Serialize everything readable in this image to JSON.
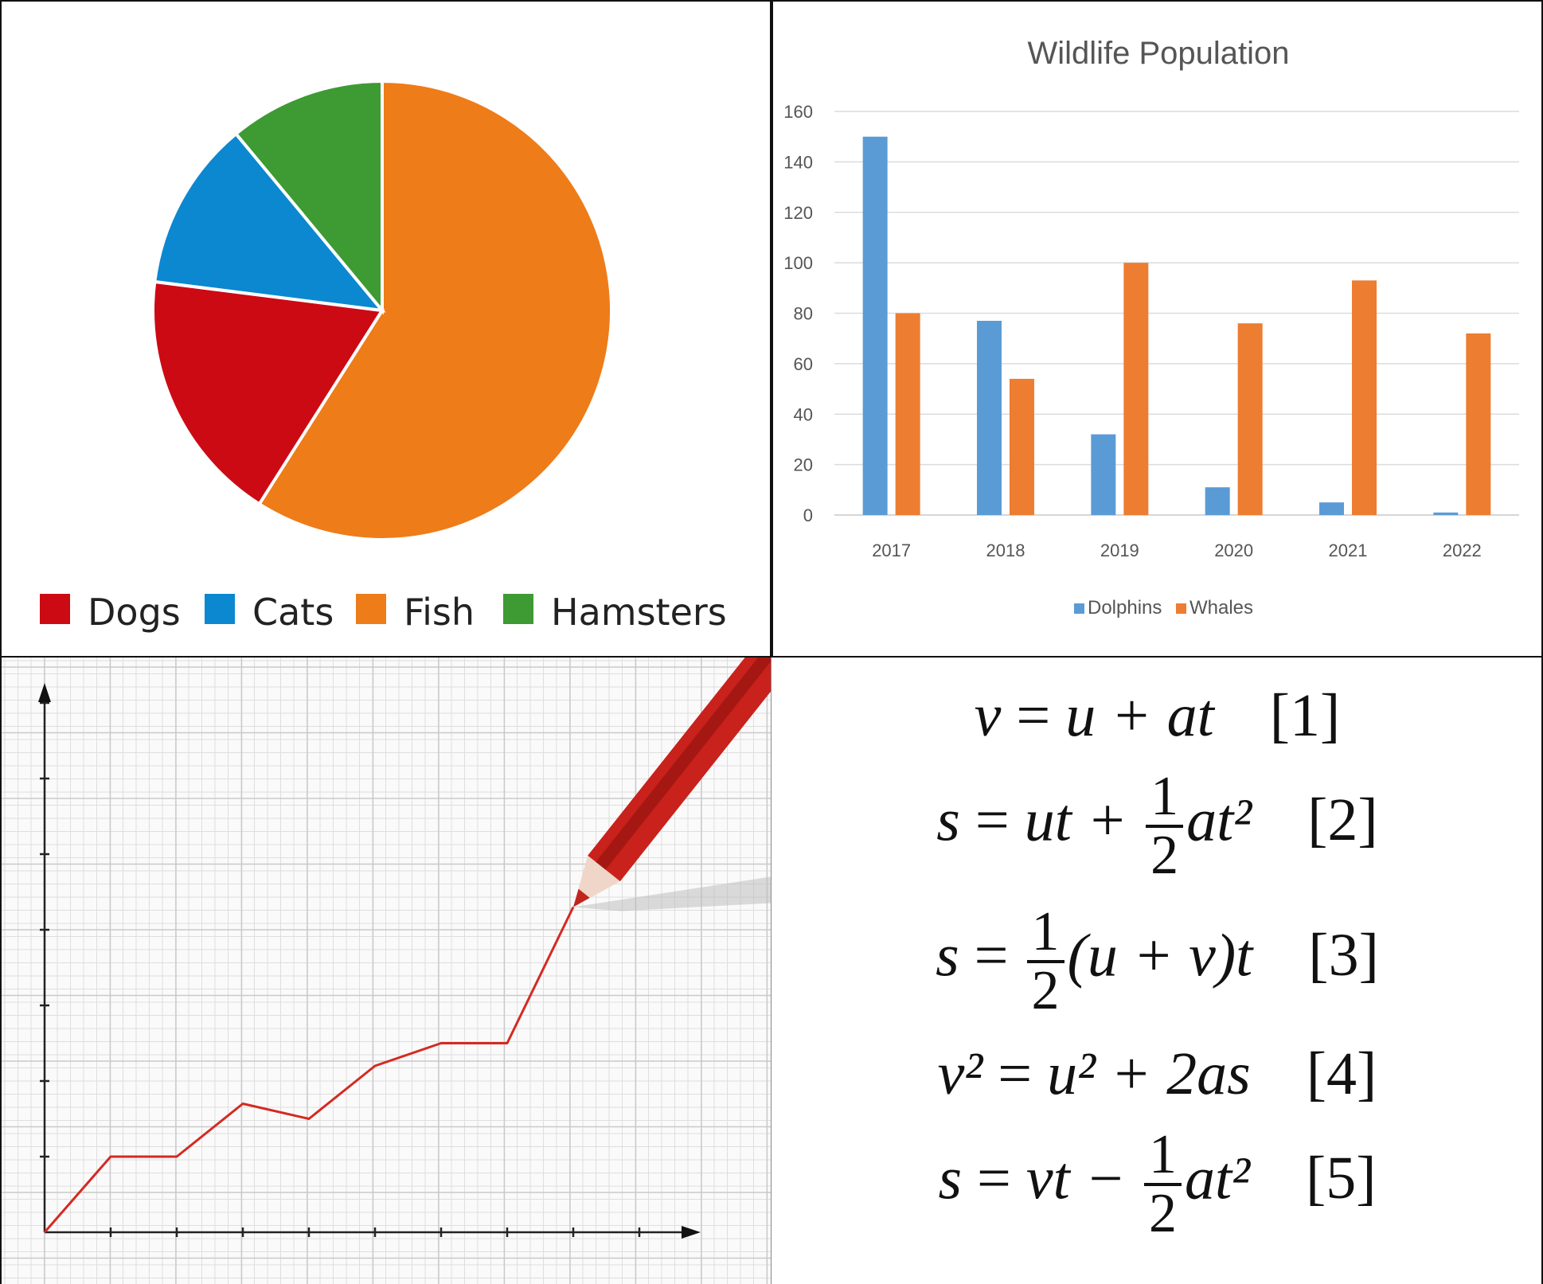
{
  "chart_data": [
    {
      "type": "pie",
      "title": "",
      "legend_position": "bottom",
      "slices": [
        {
          "label": "Dogs",
          "value": 18,
          "color": "#cc0a14"
        },
        {
          "label": "Cats",
          "value": 12,
          "color": "#0b88d0"
        },
        {
          "label": "Fish",
          "value": 59,
          "color": "#ee7c19"
        },
        {
          "label": "Hamsters",
          "value": 11,
          "color": "#3e9a33"
        }
      ]
    },
    {
      "type": "bar",
      "title": "Wildlife Population",
      "xlabel": "",
      "ylabel": "",
      "ylim": [
        0,
        160
      ],
      "yticks": [
        0,
        20,
        40,
        60,
        80,
        100,
        120,
        140,
        160
      ],
      "grid": true,
      "legend_position": "bottom",
      "categories": [
        "2017",
        "2018",
        "2019",
        "2020",
        "2021",
        "2022"
      ],
      "series": [
        {
          "name": "Dolphins",
          "color": "#5b9bd5",
          "values": [
            150,
            77,
            32,
            11,
            5,
            1
          ]
        },
        {
          "name": "Whales",
          "color": "#ed7d31",
          "values": [
            80,
            54,
            100,
            76,
            93,
            72
          ]
        }
      ]
    },
    {
      "type": "line",
      "title": "",
      "xlabel": "",
      "ylabel": "",
      "grid": true,
      "color": "#d42a22",
      "x": [
        0,
        1,
        2,
        3,
        4,
        5,
        6,
        7,
        8
      ],
      "values": [
        0,
        1,
        1,
        1.7,
        1.5,
        2.2,
        2.5,
        2.5,
        4.3
      ]
    }
  ],
  "equations": {
    "eq1": {
      "lhs": "v",
      "rhs": "u + at",
      "tag": "[1]"
    },
    "eq2": {
      "lhs": "s",
      "a": "ut +",
      "num": "1",
      "den": "2",
      "b": "at²",
      "tag": "[2]"
    },
    "eq3": {
      "lhs": "s",
      "num": "1",
      "den": "2",
      "b": "(u + v)t",
      "tag": "[3]"
    },
    "eq4": {
      "lhs": "v²",
      "rhs": "u² + 2as",
      "tag": "[4]"
    },
    "eq5": {
      "lhs": "s",
      "a": "vt −",
      "num": "1",
      "den": "2",
      "b": "at²",
      "tag": "[5]"
    }
  }
}
